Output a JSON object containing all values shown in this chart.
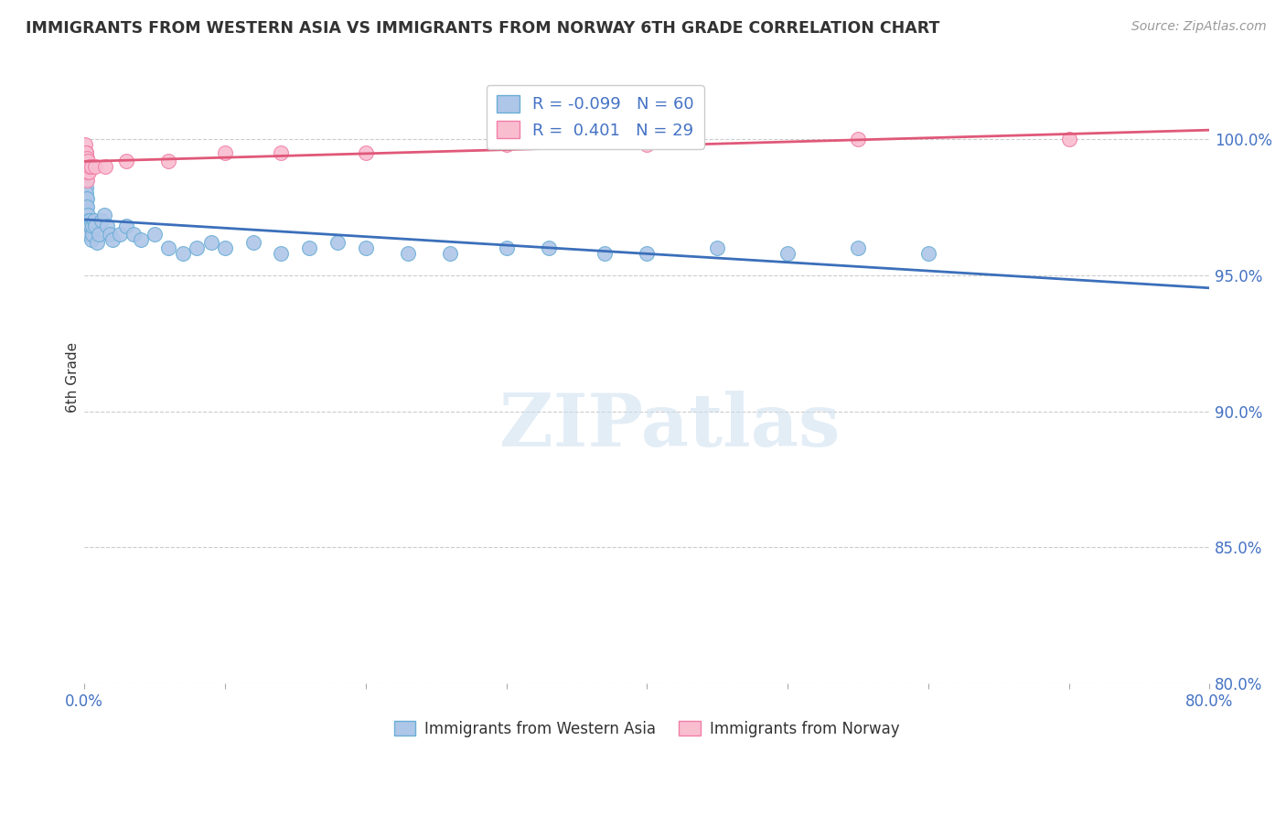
{
  "title": "IMMIGRANTS FROM WESTERN ASIA VS IMMIGRANTS FROM NORWAY 6TH GRADE CORRELATION CHART",
  "source": "Source: ZipAtlas.com",
  "ylabel": "6th Grade",
  "blue_label": "Immigrants from Western Asia",
  "pink_label": "Immigrants from Norway",
  "blue_R": -0.099,
  "blue_N": 60,
  "pink_R": 0.401,
  "pink_N": 29,
  "xlim": [
    0.0,
    80.0
  ],
  "ylim": [
    80.0,
    102.5
  ],
  "yticks": [
    80.0,
    85.0,
    90.0,
    95.0,
    100.0
  ],
  "blue_color": "#aec6e8",
  "blue_edge_color": "#6aaed6",
  "pink_color": "#f9bdd0",
  "pink_edge_color": "#f07fa8",
  "blue_line_color": "#3b6fba",
  "pink_line_color": "#e05878",
  "title_color": "#333333",
  "axis_tick_color": "#4472c4",
  "grid_color": "#cccccc",
  "blue_x": [
    0.05,
    0.07,
    0.08,
    0.09,
    0.1,
    0.11,
    0.12,
    0.13,
    0.14,
    0.15,
    0.16,
    0.17,
    0.18,
    0.2,
    0.22,
    0.25,
    0.28,
    0.3,
    0.32,
    0.35,
    0.38,
    0.4,
    0.45,
    0.5,
    0.55,
    0.6,
    0.7,
    0.8,
    0.9,
    1.0,
    1.2,
    1.4,
    1.6,
    1.8,
    2.0,
    2.5,
    3.0,
    3.5,
    4.0,
    5.0,
    6.0,
    7.0,
    8.0,
    9.0,
    10.0,
    12.0,
    14.0,
    16.0,
    18.0,
    20.0,
    23.0,
    26.0,
    30.0,
    33.0,
    37.0,
    40.0,
    45.0,
    50.0,
    55.0,
    60.0
  ],
  "blue_y": [
    99.3,
    99.0,
    98.8,
    99.1,
    98.5,
    98.2,
    97.8,
    98.0,
    97.5,
    97.2,
    97.8,
    97.0,
    96.8,
    97.5,
    97.2,
    96.8,
    96.5,
    97.0,
    96.5,
    97.0,
    96.8,
    96.5,
    96.8,
    96.3,
    96.5,
    96.8,
    97.0,
    96.8,
    96.2,
    96.5,
    97.0,
    97.2,
    96.8,
    96.5,
    96.3,
    96.5,
    96.8,
    96.5,
    96.3,
    96.5,
    96.0,
    95.8,
    96.0,
    96.2,
    96.0,
    96.2,
    95.8,
    96.0,
    96.2,
    96.0,
    95.8,
    95.8,
    96.0,
    96.0,
    95.8,
    95.8,
    96.0,
    95.8,
    96.0,
    95.8
  ],
  "pink_x": [
    0.04,
    0.06,
    0.08,
    0.09,
    0.1,
    0.11,
    0.12,
    0.13,
    0.14,
    0.15,
    0.17,
    0.18,
    0.2,
    0.22,
    0.25,
    0.3,
    0.4,
    0.5,
    0.8,
    1.5,
    3.0,
    6.0,
    10.0,
    14.0,
    20.0,
    30.0,
    40.0,
    55.0,
    70.0
  ],
  "pink_y": [
    99.5,
    99.5,
    99.8,
    99.5,
    99.3,
    99.5,
    99.0,
    99.2,
    98.8,
    99.5,
    99.3,
    98.5,
    99.0,
    99.2,
    98.8,
    98.8,
    99.0,
    99.0,
    99.0,
    99.0,
    99.2,
    99.2,
    99.5,
    99.5,
    99.5,
    99.8,
    99.8,
    100.0,
    100.0
  ]
}
